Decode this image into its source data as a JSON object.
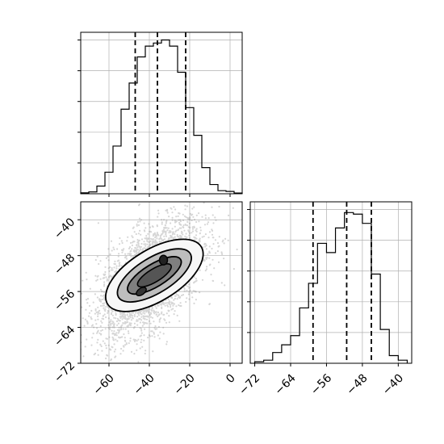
{
  "chart_data": [
    {
      "panel": "top-left",
      "type": "histogram",
      "parameter_index": 0,
      "bin_edges": [
        -74,
        -70,
        -66,
        -62,
        -58,
        -54,
        -50,
        -46,
        -42,
        -38,
        -34,
        -30,
        -26,
        -22,
        -18,
        -14,
        -10,
        -6,
        -2,
        2,
        6
      ],
      "counts": [
        0.006,
        0.012,
        0.05,
        0.14,
        0.31,
        0.55,
        0.72,
        0.89,
        0.96,
        0.98,
        1.0,
        0.96,
        0.79,
        0.56,
        0.38,
        0.17,
        0.06,
        0.02,
        0.015,
        0.005
      ],
      "quantiles": [
        -47,
        -36,
        -22
      ],
      "xlim": [
        -74,
        6
      ],
      "ylim": [
        0,
        1.05
      ],
      "grid": true,
      "tick_labels_shown": false
    },
    {
      "panel": "bottom-left",
      "type": "scatter-contour",
      "x_parameter_index": 0,
      "y_parameter_index": 1,
      "xlim": [
        -74,
        6
      ],
      "ylim": [
        -72,
        -36
      ],
      "xticks": [
        -60,
        -40,
        -20,
        0
      ],
      "xtick_labels": [
        "−60",
        "−40",
        "−20",
        "0"
      ],
      "yticks": [
        -72,
        -64,
        -56,
        -48,
        -40
      ],
      "ytick_labels": [
        "−72",
        "−64",
        "−56",
        "−48",
        "−40"
      ],
      "density_peak": {
        "x": -33,
        "y": -49
      },
      "secondary_peak": {
        "x": -44,
        "y": -56
      },
      "correlation": 0.55,
      "x_std": 13,
      "y_std": 6.5,
      "contour_fill_colors": [
        "#f7f7f7",
        "#bdbdbd",
        "#7f7f7f",
        "#555555"
      ],
      "grid": true
    },
    {
      "panel": "bottom-right",
      "type": "histogram",
      "parameter_index": 1,
      "bin_edges": [
        -72,
        -70,
        -68,
        -66,
        -64,
        -62,
        -60,
        -58,
        -56,
        -54,
        -52,
        -50,
        -48,
        -46,
        -44,
        -42,
        -40,
        -38
      ],
      "counts": [
        0.01,
        0.02,
        0.07,
        0.12,
        0.18,
        0.36,
        0.52,
        0.78,
        0.72,
        0.88,
        0.98,
        0.97,
        0.91,
        0.58,
        0.22,
        0.05,
        0.02
      ],
      "quantiles": [
        -59,
        -51.5,
        -46
      ],
      "xlim": [
        -73,
        -37
      ],
      "ylim": [
        0,
        1.05
      ],
      "xticks": [
        -72,
        -64,
        -56,
        -48,
        -40
      ],
      "xtick_labels": [
        "−72",
        "−64",
        "−56",
        "−48",
        "−40"
      ],
      "grid": true
    }
  ]
}
